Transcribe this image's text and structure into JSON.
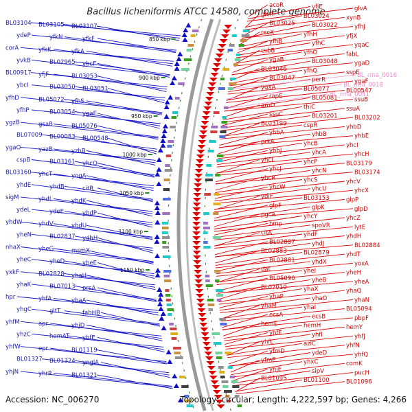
{
  "title": "Bacillus licheniformis ATCC 14580, complete genome",
  "footer": {
    "accession": "Accession: NC_006270",
    "info": "Topology: circular; Length: 4,222,597 bp; Genes: 4,266"
  },
  "colors": {
    "minus_strand": "#1010c8",
    "plus_strand": "#e00000",
    "rrna": "#f0a0d8",
    "backbone": "#777777",
    "tick": "#228822"
  },
  "scale_ticks": [
    "850 kbp",
    "900 kbp",
    "950 kbp",
    "1000 kbp",
    "1050 kbp",
    "1100 kbp",
    "1150 kbp"
  ],
  "left_labels": [
    "BL03104",
    "BL03105",
    "BL03107",
    "ydeP",
    "yfkN",
    "yfkF",
    "corA",
    "yfkK",
    "yfkA",
    "yvkB",
    "BL02965",
    "ybcF",
    "BL00917",
    "yfjF",
    "BL03053",
    "ybcI",
    "BL03050",
    "BL03051",
    "yfhD",
    "BL05072",
    "yfhS",
    "yfhP",
    "BL03054",
    "ygaE",
    "ygzB",
    "gsaB",
    "BL05076",
    "BL07009",
    "BL00083",
    "BL00548",
    "ygaO",
    "yazB",
    "yzhB",
    "cspB",
    "BL03161",
    "yhcQ",
    "BL03160",
    "yhcT",
    "yogA",
    "yhdE",
    "yhdB",
    "citR",
    "sigM",
    "yhdL",
    "yhdK",
    "ydeL",
    "ydeE",
    "yhdP",
    "yhdW",
    "yhdV",
    "yhdU",
    "yheN",
    "BL02837",
    "ydhH",
    "nhaX",
    "yheG",
    "msmX",
    "yheC",
    "yheD",
    "yheE",
    "yxkF",
    "BL02828",
    "yhaH",
    "yhaK",
    "BL07013",
    "prsA",
    "hpr",
    "yhfA",
    "yhaA",
    "yhgC",
    "gltT",
    "fabHB",
    "yhfM",
    "apr",
    "yhjD",
    "yhzC",
    "hemAT",
    "yhfE",
    "yhfW",
    "epr",
    "BL01119",
    "BL01327",
    "BL01324",
    "ynglA",
    "yhjN",
    "yhrR",
    "BL01321"
  ],
  "right_labels": [
    "acoR",
    "yfiE",
    "glvA",
    "glvR",
    "BL03024",
    "xynB",
    "BL03025",
    "BL03022",
    "yfhJ",
    "recX",
    "yfhH",
    "yfjX",
    "yfhB",
    "yfhC",
    "yqaC",
    "csbB",
    "yfhO",
    "fabL",
    "ygaB",
    "BL03048",
    "ygaD",
    "BL03046",
    "yfhQ",
    "sspE",
    "BL03047",
    "perR",
    "ygaF",
    "ygxA",
    "BL05077",
    "BL00547",
    "rapE",
    "BL05081",
    "ssuB",
    "aroD",
    "thiC",
    "ssuA",
    "ssuC",
    "BL03201",
    "BL03202",
    "BL03199",
    "cspR",
    "yhbD",
    "yhbA",
    "yhbB",
    "yhbE",
    "prkA",
    "yhcB",
    "yhcI",
    "yhbJ",
    "yhcA",
    "yhcH",
    "yhcL",
    "yhcP",
    "BL03179",
    "yhcJ",
    "yhcN",
    "BL03174",
    "yhcR",
    "yhcS",
    "yhcV",
    "yhcW",
    "yhcU",
    "yhcX",
    "ydiF",
    "BL03153",
    "glpP",
    "glpF",
    "glpK",
    "glpD",
    "pgcA",
    "yhcY",
    "yhcZ",
    "hmp",
    "spoVR",
    "lytE",
    "citA",
    "yhdF",
    "yhdH",
    "BL02887",
    "yhdJ",
    "BL02884",
    "BL02883",
    "BL02879",
    "yhdT",
    "BL02881",
    "yhdX",
    "yoxA",
    "dat",
    "yheI",
    "yheH",
    "BL05090",
    "yheB",
    "yheA",
    "BL07010",
    "yhaX",
    "yhaQ",
    "yhaP",
    "yhaO",
    "yhaN",
    "yhaM",
    "yhaI",
    "BL05094",
    "ecsA",
    "ecsB",
    "pbpF",
    "hemE",
    "hemH",
    "hemY",
    "yhfE",
    "yhfI",
    "yhfJ",
    "yhfL",
    "azlC",
    "yhfN",
    "yfmD",
    "ydeD",
    "yhfQ",
    "yfmE",
    "yhxC",
    "comK",
    "yhjE",
    "sipV",
    "pucH",
    "BL01095",
    "BL01100",
    "BL01096"
  ],
  "rrna_labels": [
    "BL_rrna_0016",
    "BL_rrna_0018",
    "BL_rrna_0041"
  ]
}
